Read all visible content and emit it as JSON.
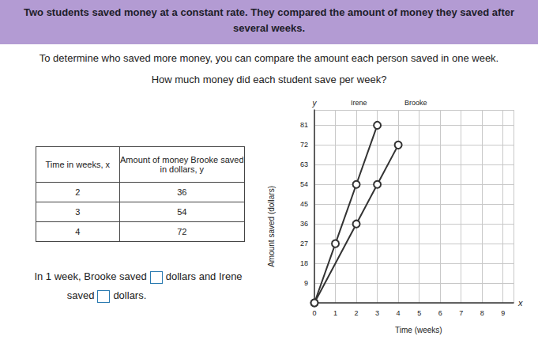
{
  "header": {
    "lines": [
      "Two students saved money at a constant rate. They compared the amount of money they saved after",
      "several weeks."
    ]
  },
  "instructions": [
    "To determine who saved more money, you can compare the amount each person saved in one week.",
    "How much money did each student save per week?"
  ],
  "table": {
    "header": [
      "Time in weeks, x",
      "Amount of money Brooke saved in dollars, y"
    ],
    "rows": [
      [
        2,
        36
      ],
      [
        3,
        54
      ],
      [
        4,
        72
      ]
    ]
  },
  "answer_sentence": {
    "line1": [
      "In 1 week, Brooke saved",
      "dollars and Irene"
    ],
    "line2": [
      "saved",
      "dollars."
    ]
  },
  "chart_data": {
    "type": "line",
    "x_label": "Time (weeks)",
    "y_label": "Amount saved (dollars)",
    "x_axis_name": "x",
    "y_axis_name": "y",
    "series": [
      {
        "name": "Irene",
        "color": "#333333",
        "marker": "circle",
        "x": [
          0,
          1,
          2,
          3
        ],
        "values": [
          0,
          27,
          54,
          81
        ]
      },
      {
        "name": "Brooke",
        "color": "#333333",
        "marker": "circle",
        "x": [
          0,
          2,
          3,
          4
        ],
        "values": [
          0,
          36,
          54,
          72
        ]
      }
    ],
    "xlim": [
      0,
      9.5
    ],
    "xticks": [
      0,
      1,
      2,
      3,
      4,
      5,
      6,
      7,
      8,
      9
    ],
    "ylim": [
      0,
      88
    ],
    "yticks": [
      9,
      18,
      27,
      36,
      45,
      54,
      63,
      72,
      81
    ],
    "grid": true
  }
}
